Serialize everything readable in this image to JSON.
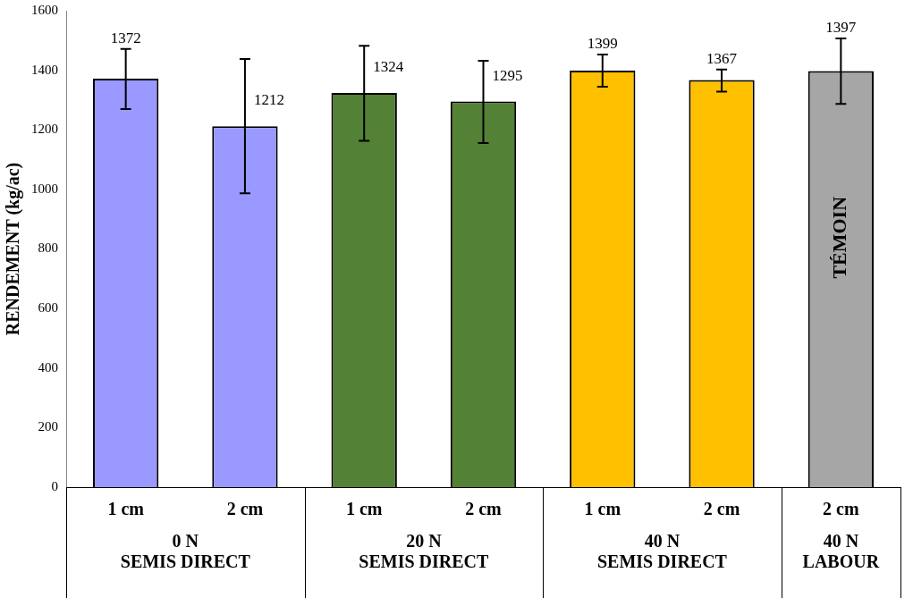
{
  "chart_data": {
    "type": "bar",
    "ylabel": "RENDEMENT (kg/ac)",
    "categories": [
      "1 cm",
      "2 cm",
      "1 cm",
      "2 cm",
      "1 cm",
      "2 cm",
      "2 cm"
    ],
    "values": [
      1372,
      1212,
      1324,
      1295,
      1399,
      1367,
      1397
    ],
    "colors": [
      "#9999ff",
      "#9999ff",
      "#538135",
      "#538135",
      "#ffc000",
      "#ffc000",
      "#a6a6a6"
    ],
    "errors": [
      [
        1270,
        1472
      ],
      [
        987,
        1438
      ],
      [
        1163,
        1482
      ],
      [
        1156,
        1432
      ],
      [
        1345,
        1453
      ],
      [
        1328,
        1403
      ],
      [
        1287,
        1507
      ]
    ],
    "data_labels": true,
    "ylim": [
      0,
      1600
    ],
    "yticks": [
      0,
      200,
      400,
      600,
      800,
      1000,
      1200,
      1400,
      1600
    ],
    "grid": false,
    "legend": false,
    "annotations": [
      "0 N",
      "SEMIS DIRECT",
      "20 N",
      "SEMIS DIRECT",
      "40 N",
      "SEMIS DIRECT",
      "40 N",
      "LABOUR",
      "TÉMOIN"
    ]
  }
}
